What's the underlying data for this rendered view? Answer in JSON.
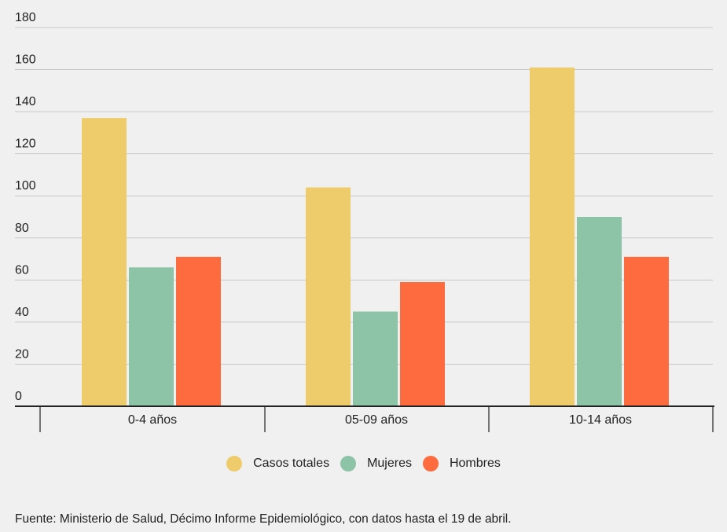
{
  "chart_data": {
    "type": "bar",
    "categories": [
      "0-4 años",
      "05-09 años",
      "10-14 años"
    ],
    "series": [
      {
        "name": "Casos totales",
        "values": [
          137,
          104,
          161
        ],
        "color": "#eecb6b"
      },
      {
        "name": "Mujeres",
        "values": [
          66,
          45,
          90
        ],
        "color": "#8dc4a8"
      },
      {
        "name": "Hombres",
        "values": [
          71,
          59,
          71
        ],
        "color": "#fe6b3f"
      }
    ],
    "yticks": [
      0,
      20,
      40,
      60,
      80,
      100,
      120,
      140,
      160,
      180
    ],
    "ylim": [
      0,
      180
    ],
    "grid": true,
    "legend_position": "bottom-center"
  },
  "source_text": "Fuente: Ministerio de Salud, Décimo Informe Epidemiológico, con datos hasta el 19 de abril."
}
